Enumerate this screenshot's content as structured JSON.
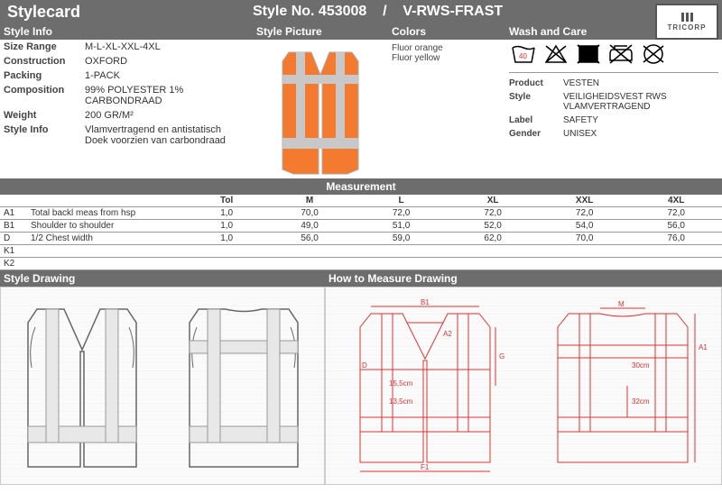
{
  "header": {
    "title": "Stylecard",
    "style_no_label": "Style No.",
    "style_no": "453008",
    "separator": "/",
    "style_code": "V-RWS-FRAST"
  },
  "brand": "TRICORP",
  "section_labels": {
    "style_info": "Style Info",
    "style_picture": "Style Picture",
    "colors": "Colors",
    "wash_care": "Wash and Care",
    "measurement": "Measurement",
    "style_drawing": "Style Drawing",
    "how_to_measure": "How to Measure Drawing"
  },
  "style_info": [
    {
      "label": "Size Range",
      "value": "M-L-XL-XXL-4XL"
    },
    {
      "label": "Construction",
      "value": "OXFORD"
    },
    {
      "label": "Packing",
      "value": "1-PACK"
    },
    {
      "label": "Composition",
      "value": "99% POLYESTER 1% CARBONDRAAD"
    },
    {
      "label": "Weight",
      "value": "200   GR/M²"
    },
    {
      "label": "Style Info",
      "value": "Vlamvertragend en antistatisch\nDoek voorzien van carbondraad"
    }
  ],
  "colors": [
    "Fluor orange",
    "Fluor yellow"
  ],
  "vest_image_main_color": "#f47a2f",
  "vest_image_stripe_color": "#c8c8c8",
  "care_icons": [
    {
      "name": "wash-40",
      "glyph": "40",
      "style": "tub"
    },
    {
      "name": "no-bleach",
      "glyph": "△",
      "cross": true
    },
    {
      "name": "no-tumble",
      "glyph": "□",
      "cross": true,
      "filled": true
    },
    {
      "name": "no-iron",
      "glyph": "⬚",
      "cross": true
    },
    {
      "name": "no-dryclean",
      "glyph": "○",
      "cross": true
    }
  ],
  "product_details": [
    {
      "label": "Product",
      "value": "VESTEN"
    },
    {
      "label": "Style",
      "value": "VEILIGHEIDSVEST RWS VLAMVERTRAGEND"
    },
    {
      "label": "Label",
      "value": "SAFETY"
    },
    {
      "label": "Gender",
      "value": "UNISEX"
    }
  ],
  "measurement": {
    "headers": [
      "",
      "",
      "Tol",
      "M",
      "L",
      "XL",
      "XXL",
      "4XL"
    ],
    "rows": [
      {
        "code": "A1",
        "desc": "Total backl meas from hsp",
        "tol": "1,0",
        "vals": [
          "70,0",
          "72,0",
          "72,0",
          "72,0",
          "72,0"
        ]
      },
      {
        "code": "B1",
        "desc": "Shoulder to shoulder",
        "tol": "1,0",
        "vals": [
          "49,0",
          "51,0",
          "52,0",
          "54,0",
          "56,0"
        ]
      },
      {
        "code": "D",
        "desc": "1/2 Chest width",
        "tol": "1,0",
        "vals": [
          "56,0",
          "59,0",
          "62,0",
          "70,0",
          "76,0"
        ]
      },
      {
        "code": "K1",
        "desc": "",
        "tol": "",
        "vals": [
          "",
          "",
          "",
          "",
          ""
        ]
      },
      {
        "code": "K2",
        "desc": "",
        "tol": "",
        "vals": [
          "",
          "",
          "",
          "",
          ""
        ]
      }
    ]
  },
  "measure_annotations": {
    "b1": "B1",
    "m": "M",
    "a1": "A1",
    "a2": "A2",
    "g": "G",
    "d": "D",
    "f1": "F1",
    "dim1": "15,5cm",
    "dim2": "13,5cm",
    "dim3": "30cm",
    "dim4": "32cm"
  }
}
